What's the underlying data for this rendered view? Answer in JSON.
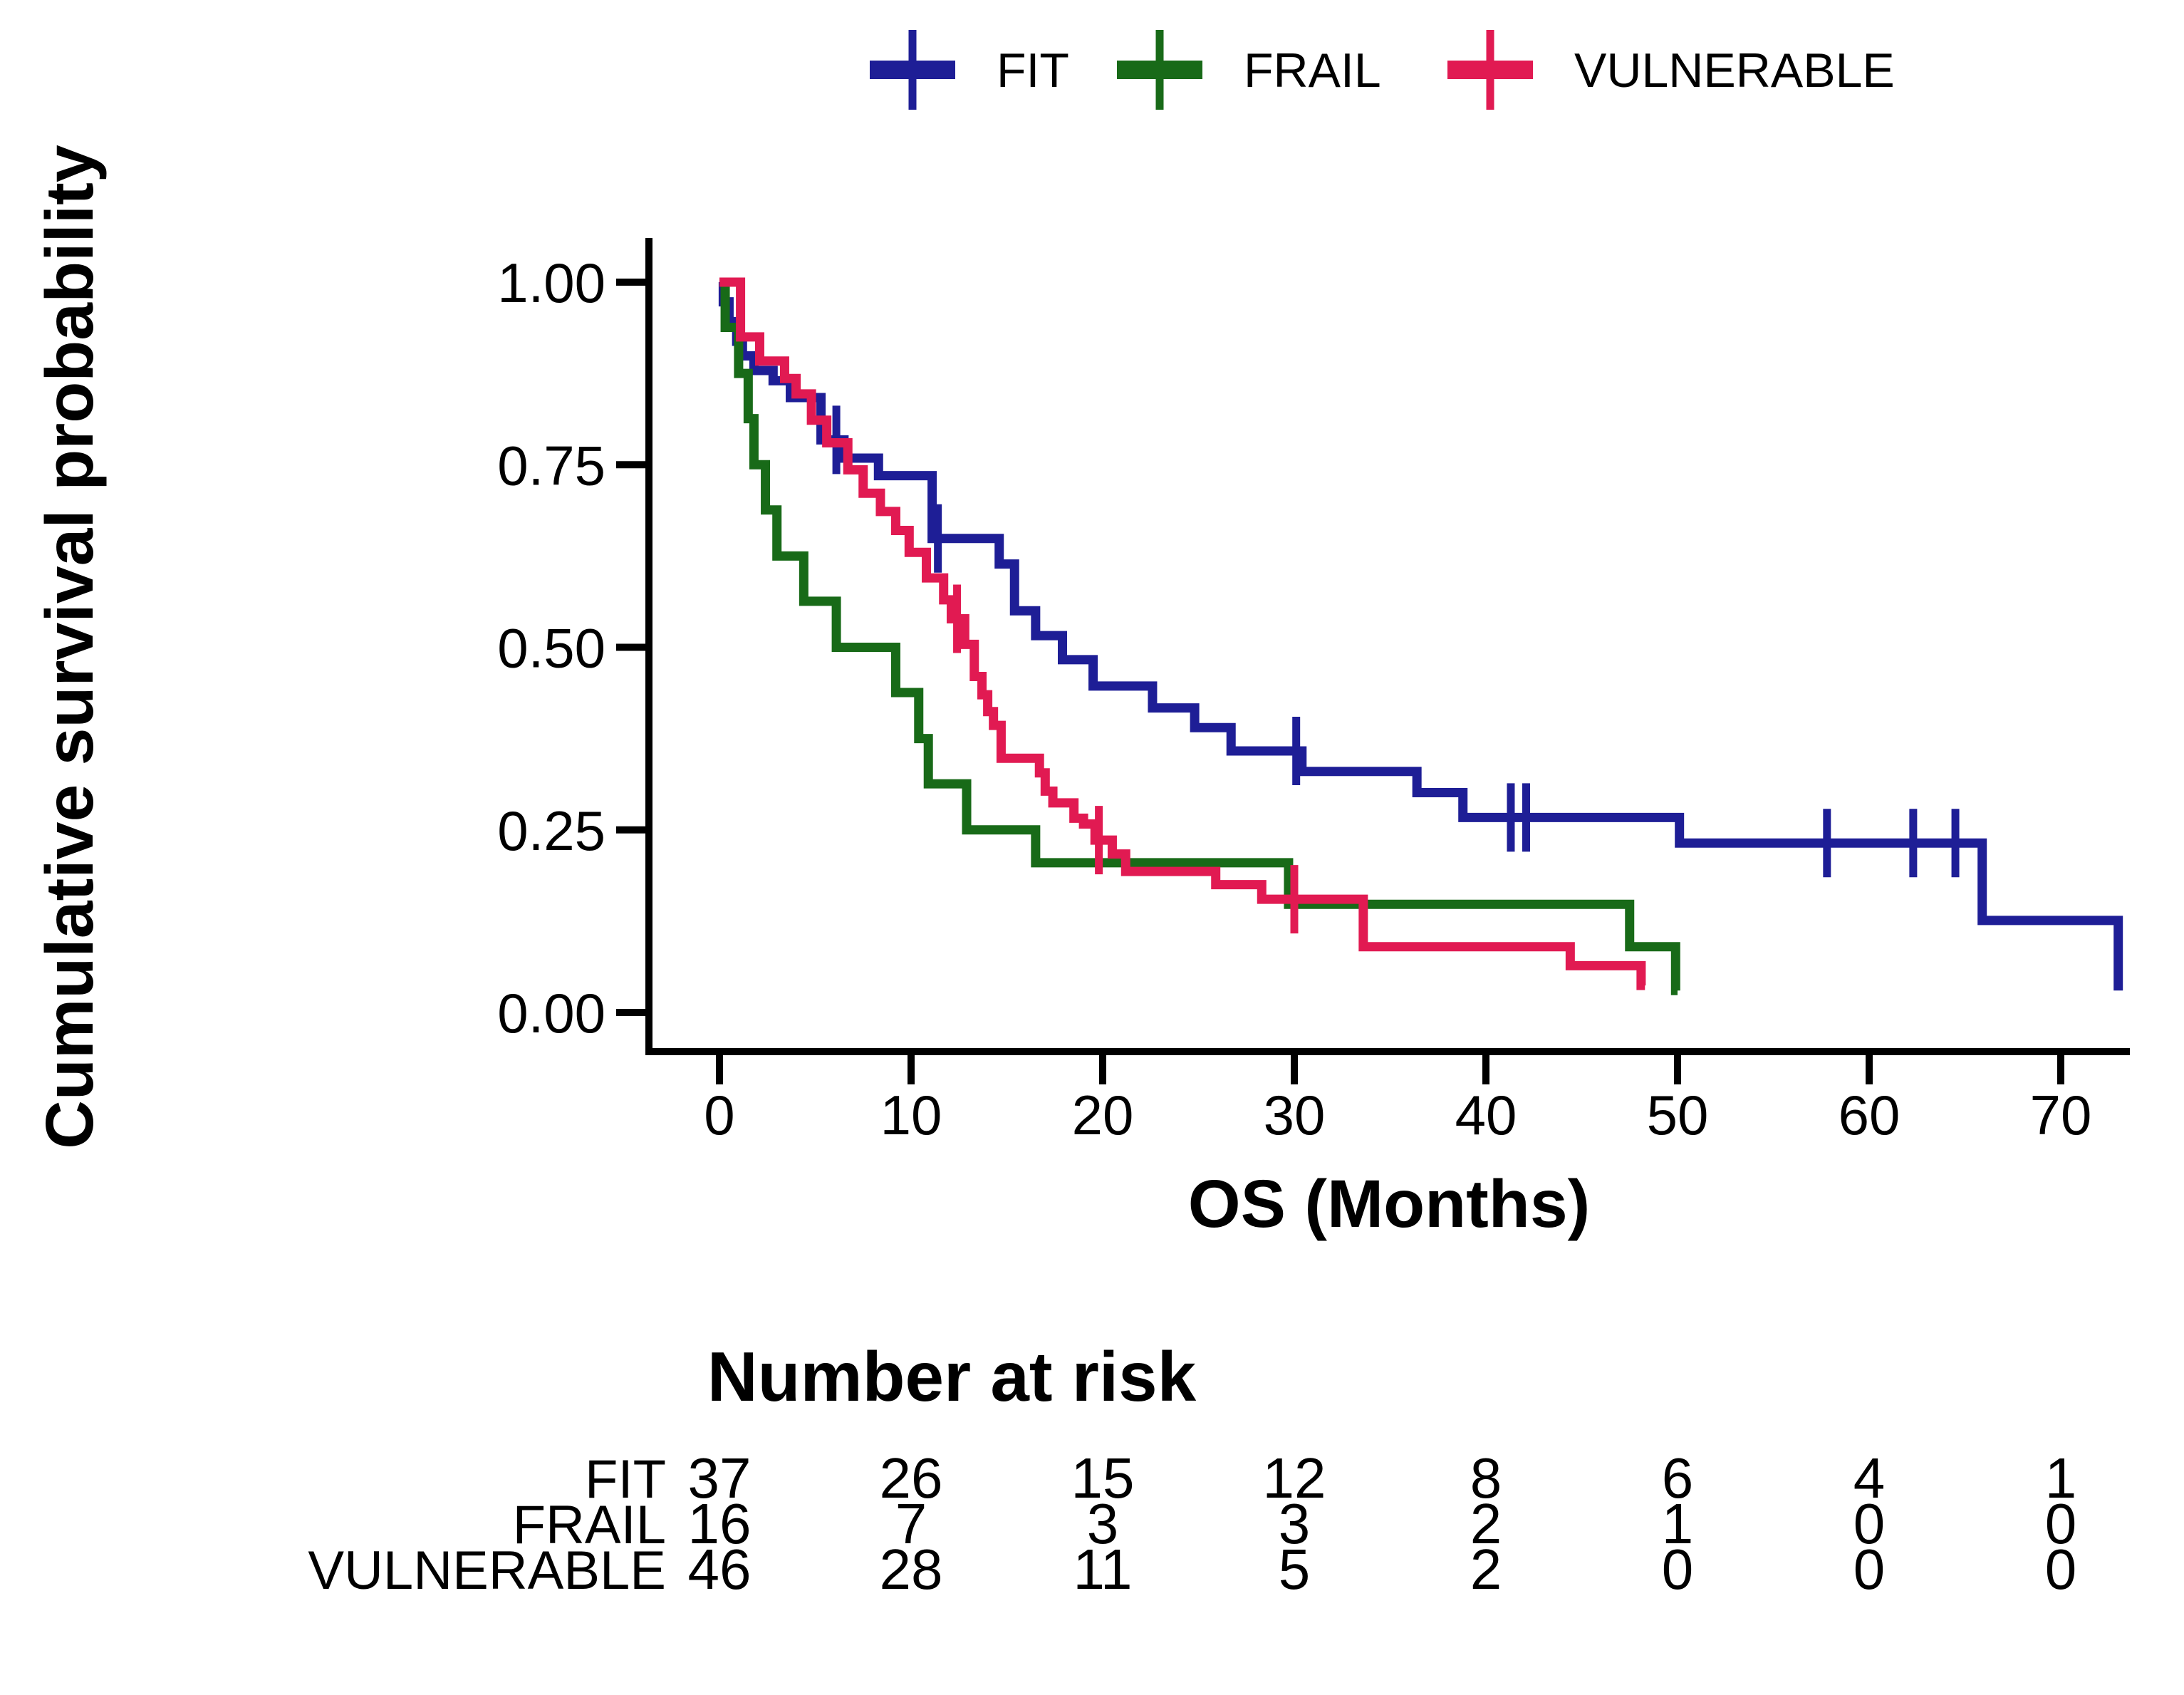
{
  "figure": {
    "background": "#ffffff"
  },
  "legend": {
    "items": [
      {
        "label": "FIT",
        "color": "#1e1e96"
      },
      {
        "label": "FRAIL",
        "color": "#186a18"
      },
      {
        "label": "VULNERABLE",
        "color": "#e11a52"
      }
    ]
  },
  "chart_data": {
    "type": "line",
    "subtype": "kaplan_meier_step",
    "title": "",
    "xlabel": "OS (Months)",
    "ylabel": "Cumulative survival probability",
    "xlim": [
      -2,
      74
    ],
    "ylim": [
      0,
      1
    ],
    "grid": false,
    "legend_position": "top",
    "x_ticks": [
      "0",
      "10",
      "20",
      "30",
      "40",
      "50",
      "60",
      "70"
    ],
    "x_tick_values": [
      0,
      10,
      20,
      30,
      40,
      50,
      60,
      70
    ],
    "y_ticks": [
      "1.00",
      "0.75",
      "0.50",
      "0.25",
      "0.00"
    ],
    "y_tick_values": [
      1.0,
      0.75,
      0.5,
      0.25,
      0.0
    ],
    "series": [
      {
        "name": "FIT",
        "color": "#1e1e96",
        "steps": [
          [
            0,
            1.0
          ],
          [
            0.2,
            0.973
          ],
          [
            0.5,
            0.946
          ],
          [
            0.9,
            0.919
          ],
          [
            1.2,
            0.899
          ],
          [
            1.8,
            0.879
          ],
          [
            2.8,
            0.865
          ],
          [
            3.7,
            0.842
          ],
          [
            5.3,
            0.784
          ],
          [
            6.5,
            0.759
          ],
          [
            8.3,
            0.735
          ],
          [
            11.1,
            0.649
          ],
          [
            14.6,
            0.614
          ],
          [
            15.4,
            0.55
          ],
          [
            16.5,
            0.516
          ],
          [
            17.9,
            0.483
          ],
          [
            19.5,
            0.447
          ],
          [
            22.6,
            0.417
          ],
          [
            24.8,
            0.39
          ],
          [
            26.7,
            0.358
          ],
          [
            30.4,
            0.33
          ],
          [
            36.4,
            0.301
          ],
          [
            38.8,
            0.267
          ],
          [
            50.1,
            0.232
          ],
          [
            65.9,
            0.126
          ],
          [
            73.0,
            0.03
          ]
        ],
        "end_time": 73.0,
        "censors": [
          [
            6.1,
            0.784
          ],
          [
            11.4,
            0.649
          ],
          [
            30.1,
            0.358
          ],
          [
            41.3,
            0.267
          ],
          [
            42.1,
            0.267
          ],
          [
            57.8,
            0.232
          ],
          [
            62.3,
            0.232
          ],
          [
            64.5,
            0.232
          ]
        ]
      },
      {
        "name": "FRAIL",
        "color": "#186a18",
        "steps": [
          [
            0,
            1.0
          ],
          [
            0.3,
            0.938
          ],
          [
            1.0,
            0.875
          ],
          [
            1.5,
            0.813
          ],
          [
            1.8,
            0.75
          ],
          [
            2.4,
            0.688
          ],
          [
            3.0,
            0.625
          ],
          [
            4.4,
            0.563
          ],
          [
            6.1,
            0.5
          ],
          [
            9.2,
            0.438
          ],
          [
            10.4,
            0.375
          ],
          [
            10.9,
            0.313
          ],
          [
            12.9,
            0.25
          ],
          [
            16.5,
            0.205
          ],
          [
            29.7,
            0.148
          ],
          [
            47.5,
            0.09
          ],
          [
            49.9,
            0.03
          ]
        ],
        "end_time": 50.0,
        "censors": []
      },
      {
        "name": "VULNERABLE",
        "color": "#e11a52",
        "steps": [
          [
            0,
            1.0
          ],
          [
            1.1,
            0.925
          ],
          [
            2.1,
            0.892
          ],
          [
            3.4,
            0.868
          ],
          [
            4.0,
            0.847
          ],
          [
            4.8,
            0.811
          ],
          [
            5.6,
            0.78
          ],
          [
            6.7,
            0.743
          ],
          [
            7.5,
            0.711
          ],
          [
            8.4,
            0.686
          ],
          [
            9.2,
            0.66
          ],
          [
            9.9,
            0.63
          ],
          [
            10.8,
            0.595
          ],
          [
            11.7,
            0.565
          ],
          [
            12.1,
            0.539
          ],
          [
            12.8,
            0.504
          ],
          [
            13.3,
            0.46
          ],
          [
            13.7,
            0.435
          ],
          [
            14.0,
            0.412
          ],
          [
            14.3,
            0.393
          ],
          [
            14.7,
            0.348
          ],
          [
            16.7,
            0.328
          ],
          [
            17.0,
            0.303
          ],
          [
            17.4,
            0.287
          ],
          [
            18.5,
            0.266
          ],
          [
            19.0,
            0.258
          ],
          [
            19.6,
            0.236
          ],
          [
            20.5,
            0.217
          ],
          [
            21.2,
            0.193
          ],
          [
            25.9,
            0.175
          ],
          [
            28.3,
            0.155
          ],
          [
            33.6,
            0.09
          ],
          [
            44.4,
            0.064
          ],
          [
            48.1,
            0.037
          ]
        ],
        "end_time": 48.3,
        "censors": [
          [
            12.4,
            0.539
          ],
          [
            19.8,
            0.236
          ],
          [
            30.0,
            0.155
          ]
        ]
      }
    ]
  },
  "risk_table": {
    "title": "Number at risk",
    "times": [
      "0",
      "10",
      "20",
      "30",
      "40",
      "50",
      "60",
      "70"
    ],
    "rows": [
      {
        "group": "FIT",
        "color": "#1e1e96",
        "counts": [
          "37",
          "26",
          "15",
          "12",
          "8",
          "6",
          "4",
          "1"
        ]
      },
      {
        "group": "FRAIL",
        "color": "#186a18",
        "counts": [
          "16",
          "7",
          "3",
          "3",
          "2",
          "1",
          "0",
          "0"
        ]
      },
      {
        "group": "VULNERABLE",
        "color": "#e11a52",
        "counts": [
          "46",
          "28",
          "11",
          "5",
          "2",
          "0",
          "0",
          "0"
        ]
      }
    ]
  }
}
